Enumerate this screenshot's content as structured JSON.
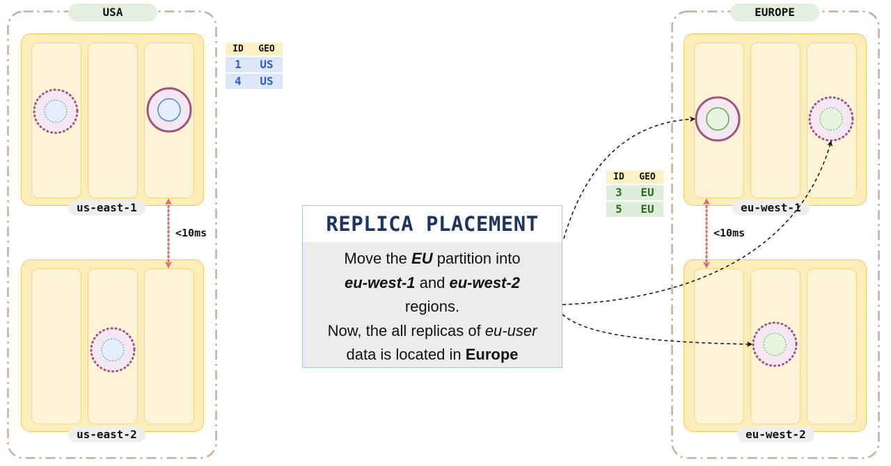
{
  "geos": {
    "usa": {
      "label": "USA"
    },
    "europe": {
      "label": "EUROPE"
    }
  },
  "regions": {
    "us_east_1": {
      "label": "us-east-1"
    },
    "us_east_2": {
      "label": "us-east-2"
    },
    "eu_west_1": {
      "label": "eu-west-1"
    },
    "eu_west_2": {
      "label": "eu-west-2"
    }
  },
  "latency": {
    "usa": "<10ms",
    "europe": "<10ms"
  },
  "tables": {
    "us": {
      "headers": {
        "id": "ID",
        "geo": "GEO"
      },
      "rows": [
        {
          "id": "1",
          "geo": "US"
        },
        {
          "id": "4",
          "geo": "US"
        }
      ]
    },
    "eu": {
      "headers": {
        "id": "ID",
        "geo": "GEO"
      },
      "rows": [
        {
          "id": "3",
          "geo": "EU"
        },
        {
          "id": "5",
          "geo": "EU"
        }
      ]
    }
  },
  "card": {
    "title": "REPLICA PLACEMENT",
    "line1": {
      "a": "Move the ",
      "b": "EU",
      "c": " partition into"
    },
    "line2": {
      "a": "eu-west-1",
      "b": " and ",
      "c": "eu-west-2"
    },
    "line3": "regions.",
    "line4": {
      "a": "Now, the all replicas of ",
      "b": "eu-user"
    },
    "line5": {
      "a": "data is located in ",
      "b": "Europe"
    }
  },
  "colors": {
    "geo_outline": "#c9ad9a",
    "region_fill": "#fdeeb9",
    "region_border": "#f0c75a",
    "replica_ring": "#a2527a",
    "us_replica_core": "#e4eefc",
    "eu_replica_core": "#e6f4e1",
    "latency_arrow": "#d96b6b"
  }
}
